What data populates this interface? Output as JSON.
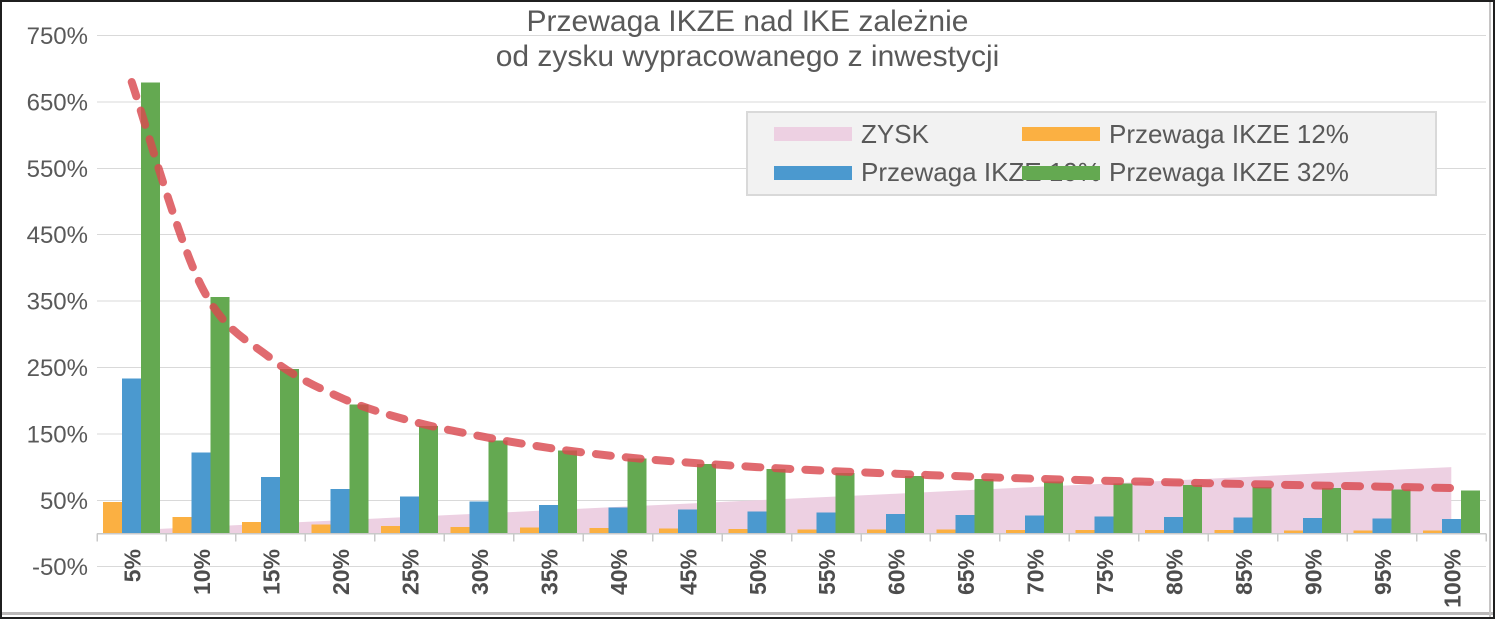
{
  "title": {
    "line1": "Przewaga IKZE nad IKE zależnie",
    "line2": "od zysku wypracowanego z inwestycji"
  },
  "legend": {
    "items": [
      {
        "id": "zysk",
        "label": "ZYSK",
        "color": "#EDD0E2"
      },
      {
        "id": "ikze12",
        "label": "Przewaga IKZE 12%",
        "color": "#FBB042"
      },
      {
        "id": "ikze19",
        "label": "Przewaga IKZE 19%",
        "color": "#4B99CF"
      },
      {
        "id": "ikze32",
        "label": "Przewaga IKZE 32%",
        "color": "#64A951"
      }
    ]
  },
  "chart_data": {
    "type": "combo: area + grouped bars + dashed power trendline",
    "title": "Przewaga IKZE nad IKE zależnie od zysku wypracowanego z inwestycji",
    "categories": [
      "5%",
      "10%",
      "15%",
      "20%",
      "25%",
      "30%",
      "35%",
      "40%",
      "45%",
      "50%",
      "55%",
      "60%",
      "65%",
      "70%",
      "75%",
      "80%",
      "85%",
      "90%",
      "95%",
      "100%"
    ],
    "y_axis": {
      "min": -50,
      "max": 750,
      "step": 100,
      "suffix": "%"
    },
    "x_axis": {
      "label_rotation_deg": -90
    },
    "grid": true,
    "legend_position": "top-right",
    "series": [
      {
        "id": "zysk",
        "name": "ZYSK",
        "type": "area",
        "color": "#EDD0E2",
        "values": [
          5,
          10,
          15,
          20,
          25,
          30,
          35,
          40,
          45,
          50,
          55,
          60,
          65,
          70,
          75,
          80,
          85,
          90,
          95,
          100
        ]
      },
      {
        "id": "ikze12",
        "name": "Przewaga IKZE 12%",
        "type": "bar",
        "color": "#FBB042",
        "values": [
          47.7,
          25.0,
          17.4,
          13.6,
          11.4,
          9.8,
          8.8,
          8.0,
          7.3,
          6.8,
          6.4,
          6.1,
          5.8,
          5.5,
          5.3,
          5.1,
          4.9,
          4.8,
          4.7,
          4.5
        ]
      },
      {
        "id": "ikze19",
        "name": "Przewaga IKZE 19%",
        "type": "bar",
        "color": "#4B99CF",
        "values": [
          233.3,
          122.2,
          85.2,
          66.7,
          55.6,
          48.1,
          42.9,
          38.9,
          35.8,
          33.3,
          31.3,
          29.6,
          28.2,
          27.0,
          25.9,
          25.0,
          24.2,
          23.5,
          22.8,
          22.2
        ]
      },
      {
        "id": "ikze32",
        "name": "Przewaga IKZE 32%",
        "type": "bar",
        "color": "#64A951",
        "values": [
          679.4,
          355.9,
          248.0,
          194.1,
          161.8,
          140.2,
          124.8,
          113.2,
          104.3,
          97.1,
          91.2,
          86.3,
          82.1,
          78.6,
          75.5,
          72.8,
          70.4,
          68.3,
          66.4,
          64.7
        ]
      }
    ],
    "trendline": {
      "name": "trend (power) for Przewaga IKZE 32%",
      "style": "dashed",
      "color": "#D9494F",
      "values": [
        680,
        373,
        264,
        205,
        170,
        147,
        129,
        116,
        107,
        100,
        94.5,
        90,
        86,
        82.5,
        79.5,
        77,
        74.5,
        72.5,
        70.5,
        68.5
      ]
    }
  },
  "colors": {
    "background": "#FFFFFF",
    "gridline": "#D9D9D9",
    "axis_line": "#C9C9C9",
    "title_text": "#595959",
    "y_label_text": "#595959",
    "x_label_text": "#4D4D4D",
    "legend_bg": "#F2F2F2",
    "legend_border": "#D9D9D9",
    "trend": "#D9494F"
  }
}
